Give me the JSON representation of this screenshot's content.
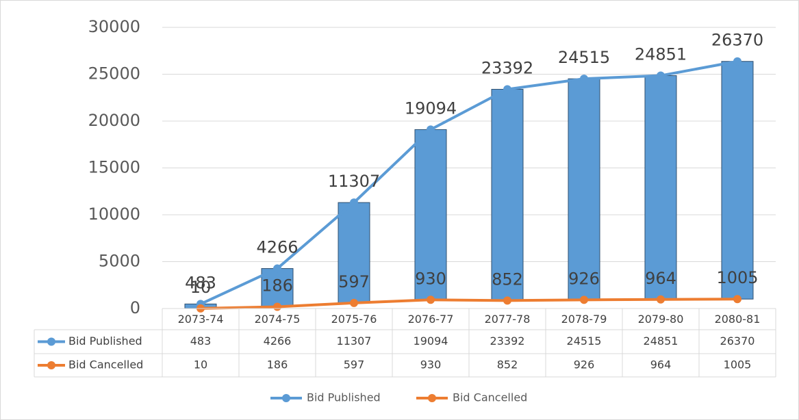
{
  "chart_data": {
    "type": "line",
    "categories": [
      "2073-74",
      "2074-75",
      "2075-76",
      "2076-77",
      "2077-78",
      "2078-79",
      "2079-80",
      "2080-81"
    ],
    "series": [
      {
        "name": "Bid Published",
        "color": "#5b9bd5",
        "values": [
          483,
          4266,
          11307,
          19094,
          23392,
          24515,
          24851,
          26370
        ]
      },
      {
        "name": "Bid Cancelled",
        "color": "#ed7d31",
        "values": [
          10,
          186,
          597,
          930,
          852,
          926,
          964,
          1005
        ]
      }
    ],
    "up_down_bars": true,
    "bar_color": "#5b9bd5",
    "ylim": [
      0,
      30000
    ],
    "yticks": [
      0,
      5000,
      10000,
      15000,
      20000,
      25000,
      30000
    ],
    "grid": true,
    "data_table": true,
    "legend": "bottom"
  }
}
